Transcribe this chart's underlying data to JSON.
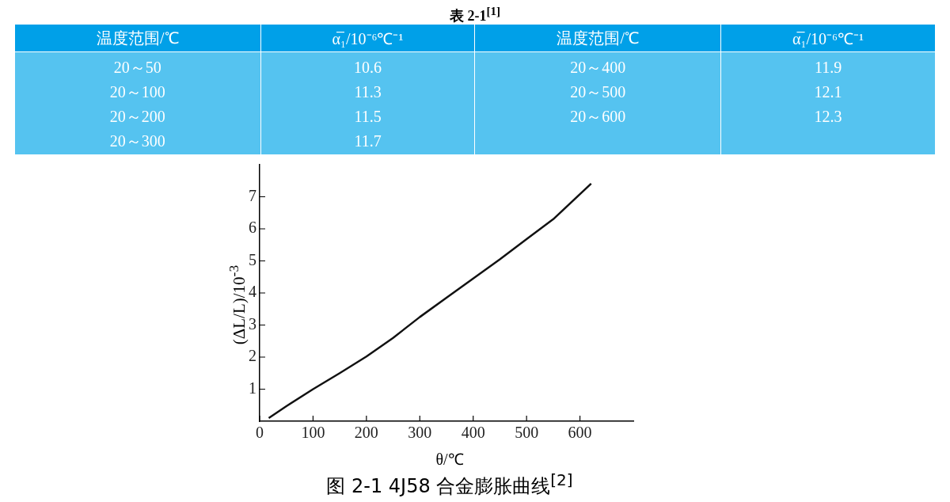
{
  "chart_data": [
    {
      "type": "other",
      "title": "表 2-1$^{[1]}$",
      "annotations": [
        "温度范围/℃",
        "α̅₁/10⁻⁶℃⁻¹",
        "温度范围/℃",
        "α̅₁/10⁻⁶℃⁻¹",
        "20～50\n20～100\n20～200\n20～300",
        "10.6\n11.3\n11.5\n11.7",
        "20～400\n20～500\n20～600",
        "11.9\n12.1\n12.3"
      ]
    },
    {
      "type": "line",
      "title": "图 2-1 4J58 合金膨胀曲线$^{[2]}$",
      "xlabel": "θ/℃",
      "ylabel": "(ΔL/L)/10$^{-3}$",
      "x": [
        17,
        50,
        100,
        150,
        200,
        250,
        300,
        350,
        400,
        450,
        500,
        550,
        621
      ],
      "series": [
        {
          "color": "#111111",
          "values": [
            0.1,
            0.47,
            1.0,
            1.5,
            2.02,
            2.6,
            3.25,
            3.85,
            4.45,
            5.05,
            5.68,
            6.3,
            7.41
          ]
        }
      ],
      "xlim": [
        0,
        700
      ],
      "xticks": [
        0,
        100,
        200,
        300,
        400,
        500,
        600
      ],
      "ylim": [
        0,
        8
      ],
      "yticks": [
        1,
        2,
        3,
        4,
        5,
        6,
        7
      ],
      "legend": false,
      "marker": "none",
      "line_style": "solid"
    }
  ]
}
